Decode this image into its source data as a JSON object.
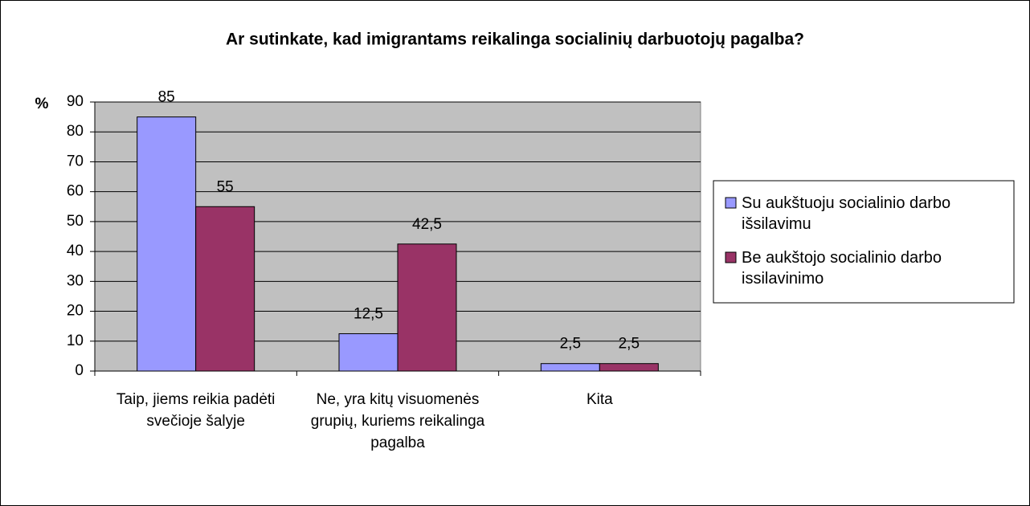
{
  "chart_data": {
    "type": "bar",
    "title": "Ar sutinkate, kad imigrantams reikalinga socialinių darbuotojų pagalba?",
    "y_label": "%",
    "categories": [
      "Taip, jiems reikia padėti svečioje šalyje",
      "Ne, yra kitų visuomenės grupių, kuriems reikalinga pagalba",
      "Kita"
    ],
    "series": [
      {
        "name": "Su aukštuoju socialinio darbo išsilavimu",
        "color": "#9999ff",
        "values": [
          85,
          12.5,
          2.5
        ],
        "value_labels": [
          "85",
          "12,5",
          "2,5"
        ]
      },
      {
        "name": "Be aukštojo socialinio darbo issilavinimo",
        "color": "#993366",
        "values": [
          55,
          42.5,
          2.5
        ],
        "value_labels": [
          "55",
          "42,5",
          "2,5"
        ]
      }
    ],
    "ylim": [
      0,
      90
    ],
    "yticks": [
      0,
      10,
      20,
      30,
      40,
      50,
      60,
      70,
      80,
      90
    ],
    "grid": true,
    "legend": "right"
  }
}
